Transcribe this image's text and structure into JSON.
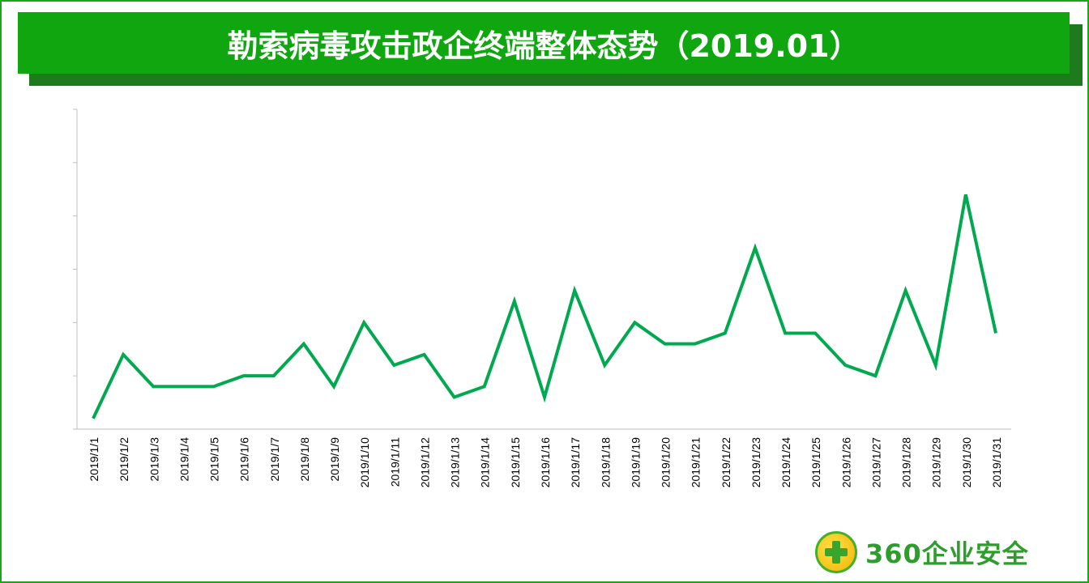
{
  "title": "勒索病毒攻击政企终端整体态势（2019.01）",
  "logo": {
    "text": "360企业安全",
    "colors": {
      "green": "#2e9d2e",
      "yellow": "#f2b400"
    }
  },
  "chart_data": {
    "type": "line",
    "title": "勒索病毒攻击政企终端整体态势（2019.01）",
    "xlabel": "",
    "ylabel": "",
    "ylim": [
      0,
      6
    ],
    "y_tick_labels_shown": false,
    "grid": false,
    "line_color": "#00a94f",
    "categories": [
      "2019/1/1",
      "2019/1/2",
      "2019/1/3",
      "2019/1/4",
      "2019/1/5",
      "2019/1/6",
      "2019/1/7",
      "2019/1/8",
      "2019/1/9",
      "2019/1/10",
      "2019/1/11",
      "2019/1/12",
      "2019/1/13",
      "2019/1/14",
      "2019/1/15",
      "2019/1/16",
      "2019/1/17",
      "2019/1/18",
      "2019/1/19",
      "2019/1/20",
      "2019/1/21",
      "2019/1/22",
      "2019/1/23",
      "2019/1/24",
      "2019/1/25",
      "2019/1/26",
      "2019/1/27",
      "2019/1/28",
      "2019/1/29",
      "2019/1/30",
      "2019/1/31"
    ],
    "values": [
      0.2,
      1.4,
      0.8,
      0.8,
      0.8,
      1.0,
      1.0,
      1.6,
      0.8,
      2.0,
      1.2,
      1.4,
      0.6,
      0.8,
      2.4,
      0.6,
      2.6,
      1.2,
      2.0,
      1.6,
      1.6,
      1.8,
      3.4,
      1.8,
      1.8,
      1.2,
      1.0,
      2.6,
      1.2,
      4.4,
      1.8
    ]
  }
}
